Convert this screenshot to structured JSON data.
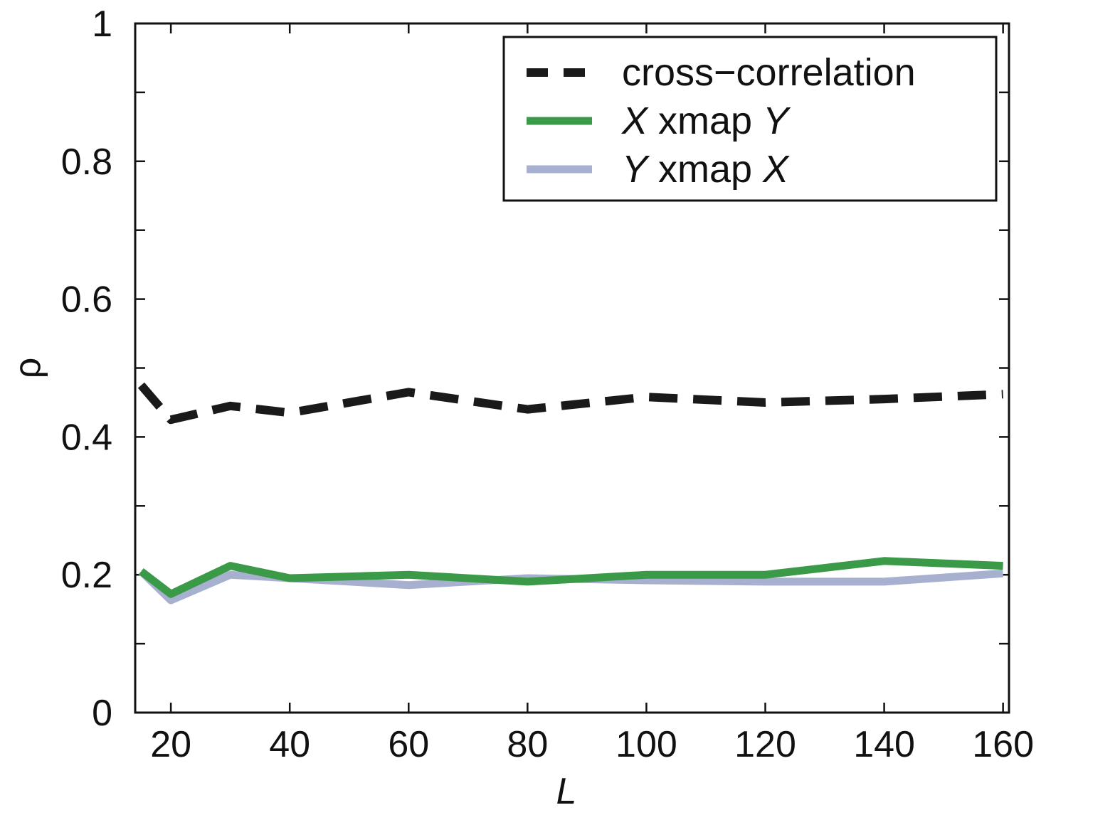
{
  "chart_data": {
    "type": "line",
    "title": "",
    "xlabel": "L",
    "ylabel": "ρ",
    "xlim": [
      14,
      161
    ],
    "ylim": [
      0,
      1
    ],
    "x_ticks": [
      20,
      40,
      60,
      80,
      100,
      120,
      140,
      160
    ],
    "y_ticks": [
      0,
      0.1,
      0.2,
      0.3,
      0.4,
      0.5,
      0.6,
      0.7,
      0.8,
      0.9,
      1
    ],
    "y_tick_labels": [
      {
        "value": 0,
        "label": "0"
      },
      {
        "value": 0.2,
        "label": "0.2"
      },
      {
        "value": 0.4,
        "label": "0.4"
      },
      {
        "value": 0.6,
        "label": "0.6"
      },
      {
        "value": 0.8,
        "label": "0.8"
      },
      {
        "value": 1,
        "label": "1"
      }
    ],
    "grid": false,
    "legend_position": "top-right",
    "legend_entries": [
      {
        "label": "cross−correlation",
        "parts": [
          {
            "text": "cross−correlation",
            "italic": false
          }
        ]
      },
      {
        "label": "X xmap Y",
        "parts": [
          {
            "text": "X",
            "italic": true
          },
          {
            "text": " xmap ",
            "italic": false
          },
          {
            "text": "Y",
            "italic": true
          }
        ]
      },
      {
        "label": "Y xmap X",
        "parts": [
          {
            "text": "Y",
            "italic": true
          },
          {
            "text": " xmap ",
            "italic": false
          },
          {
            "text": "X",
            "italic": true
          }
        ]
      }
    ],
    "series": [
      {
        "name": "cross−correlation",
        "color": "#1a1a1a",
        "style": "dashed",
        "x": [
          15,
          20,
          30,
          40,
          60,
          80,
          100,
          120,
          140,
          160
        ],
        "y": [
          0.475,
          0.425,
          0.445,
          0.435,
          0.465,
          0.44,
          0.458,
          0.45,
          0.455,
          0.462
        ]
      },
      {
        "name": "X xmap Y",
        "color": "#3a9a48",
        "style": "solid",
        "x": [
          15,
          20,
          30,
          40,
          60,
          80,
          100,
          120,
          140,
          160
        ],
        "y": [
          0.205,
          0.172,
          0.213,
          0.195,
          0.2,
          0.19,
          0.2,
          0.2,
          0.22,
          0.213
        ]
      },
      {
        "name": "Y xmap X",
        "color": "#a8b0cf",
        "style": "solid",
        "x": [
          15,
          20,
          30,
          40,
          60,
          80,
          100,
          120,
          140,
          160
        ],
        "y": [
          0.205,
          0.163,
          0.2,
          0.195,
          0.185,
          0.195,
          0.192,
          0.19,
          0.19,
          0.202
        ]
      }
    ]
  }
}
